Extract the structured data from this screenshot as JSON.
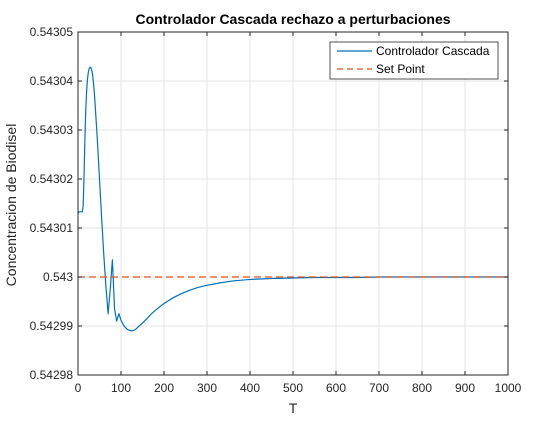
{
  "colors": {
    "series_controller": "#0072bd",
    "series_setpoint": "#d95319",
    "grid": "#e3e3e3",
    "axes": "#262626",
    "background": "#ffffff"
  },
  "chart_data": {
    "type": "line",
    "title": "Controlador Cascada rechazo a perturbaciones",
    "xlabel": "T",
    "ylabel": "Concentracion de Biodisel",
    "xlim": [
      0,
      1000
    ],
    "ylim": [
      0.54298,
      0.54305
    ],
    "grid": true,
    "legend_position": "top-right",
    "x_ticks": [
      0,
      100,
      200,
      300,
      400,
      500,
      600,
      700,
      800,
      900,
      1000
    ],
    "x_tick_labels": [
      "0",
      "100",
      "200",
      "300",
      "400",
      "500",
      "600",
      "700",
      "800",
      "900",
      "1000"
    ],
    "y_ticks": [
      0.54298,
      0.54299,
      0.543,
      0.54301,
      0.54302,
      0.54303,
      0.54304,
      0.54305
    ],
    "y_tick_labels": [
      "0.54298",
      "0.54299",
      "0.543",
      "0.54301",
      "0.54302",
      "0.54303",
      "0.54304",
      "0.54305"
    ],
    "series": [
      {
        "name": "Controlador Cascada",
        "style": "solid",
        "x": [
          0,
          2,
          4,
          6,
          8,
          10,
          12,
          14,
          16,
          18,
          20,
          22,
          24,
          26,
          28,
          30,
          32,
          34,
          36,
          38,
          40,
          45,
          50,
          55,
          60,
          65,
          70,
          75,
          80,
          85,
          90,
          95,
          100,
          105,
          110,
          115,
          120,
          125,
          130,
          135,
          140,
          150,
          160,
          170,
          180,
          190,
          200,
          220,
          240,
          260,
          280,
          300,
          330,
          360,
          400,
          450,
          500,
          550,
          600,
          650,
          700,
          800,
          900,
          1000
        ],
        "y": [
          0.543013,
          0.5430133,
          0.5430133,
          0.5430133,
          0.5430133,
          0.5430133,
          0.5430145,
          0.5430205,
          0.543028,
          0.543034,
          0.5430378,
          0.5430403,
          0.5430418,
          0.5430425,
          0.5430428,
          0.5430427,
          0.5430422,
          0.5430412,
          0.5430396,
          0.5430376,
          0.543035,
          0.543028,
          0.54302,
          0.543012,
          0.5430045,
          0.542998,
          0.5429925,
          0.5429975,
          0.5430035,
          0.5429935,
          0.542991,
          0.5429925,
          0.5429912,
          0.5429903,
          0.5429897,
          0.5429893,
          0.5429891,
          0.542989,
          0.5429891,
          0.5429894,
          0.5429898,
          0.5429906,
          0.5429915,
          0.5429924,
          0.5429932,
          0.5429939,
          0.5429946,
          0.5429957,
          0.5429966,
          0.5429973,
          0.5429979,
          0.5429983,
          0.5429988,
          0.5429992,
          0.5429995,
          0.5429997,
          0.5429998,
          0.5429999,
          0.5429999,
          0.5429999,
          0.543,
          0.543,
          0.543,
          0.543
        ]
      },
      {
        "name": "Set Point",
        "style": "dashed",
        "x": [
          0,
          1000
        ],
        "y": [
          0.543,
          0.543
        ]
      }
    ]
  }
}
